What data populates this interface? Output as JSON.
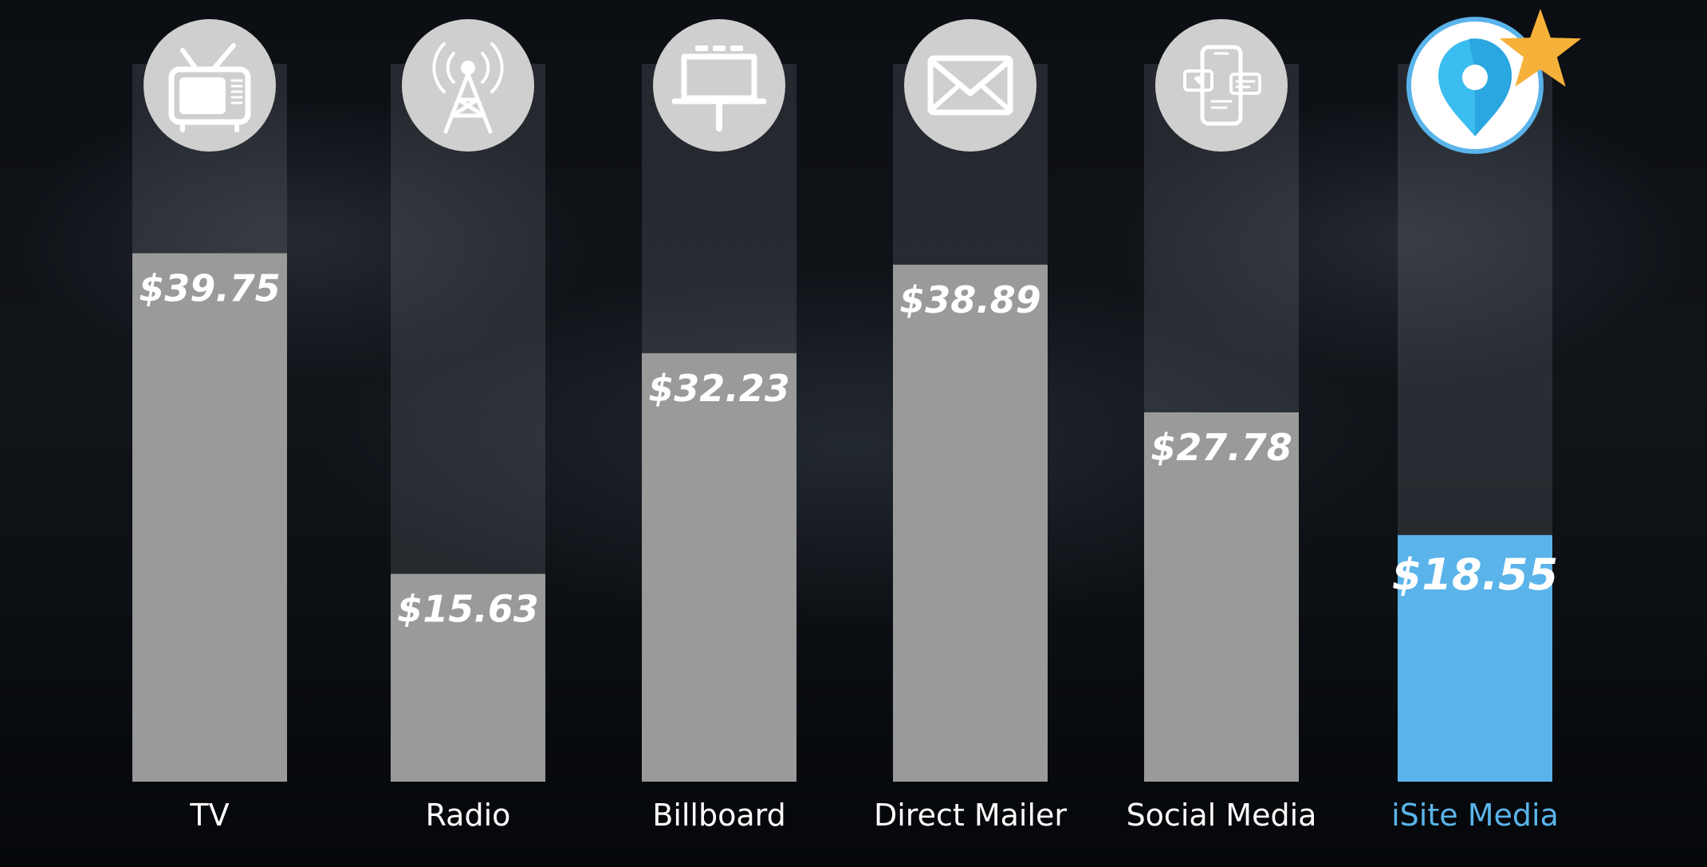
{
  "chart_data": {
    "type": "bar",
    "categories": [
      "TV",
      "Radio",
      "Billboard",
      "Direct Mailer",
      "Social Media",
      "iSite Media"
    ],
    "values": [
      39.75,
      15.63,
      32.23,
      38.89,
      27.78,
      18.55
    ],
    "value_labels": [
      "$39.75",
      "$15.63",
      "$32.23",
      "$38.89",
      "$27.78",
      "$18.55"
    ],
    "icons": [
      "tv-icon",
      "radio-tower-icon",
      "billboard-icon",
      "envelope-icon",
      "phone-chat-icon",
      "location-pin-icon"
    ],
    "highlight": "iSite Media",
    "highlight_badge": "star-icon",
    "ylim": [
      0,
      54
    ],
    "grid": false,
    "legend": "none",
    "title": "",
    "xlabel": "",
    "ylabel": ""
  },
  "colors": {
    "bar": "#9a9a9a",
    "highlight_bar": "#5ab4ea",
    "track": "#3a3d43",
    "icon_disc": "#cfcfcf",
    "star": "#f5b13a",
    "label": "#ffffff",
    "highlight_label": "#5ab4ea"
  }
}
